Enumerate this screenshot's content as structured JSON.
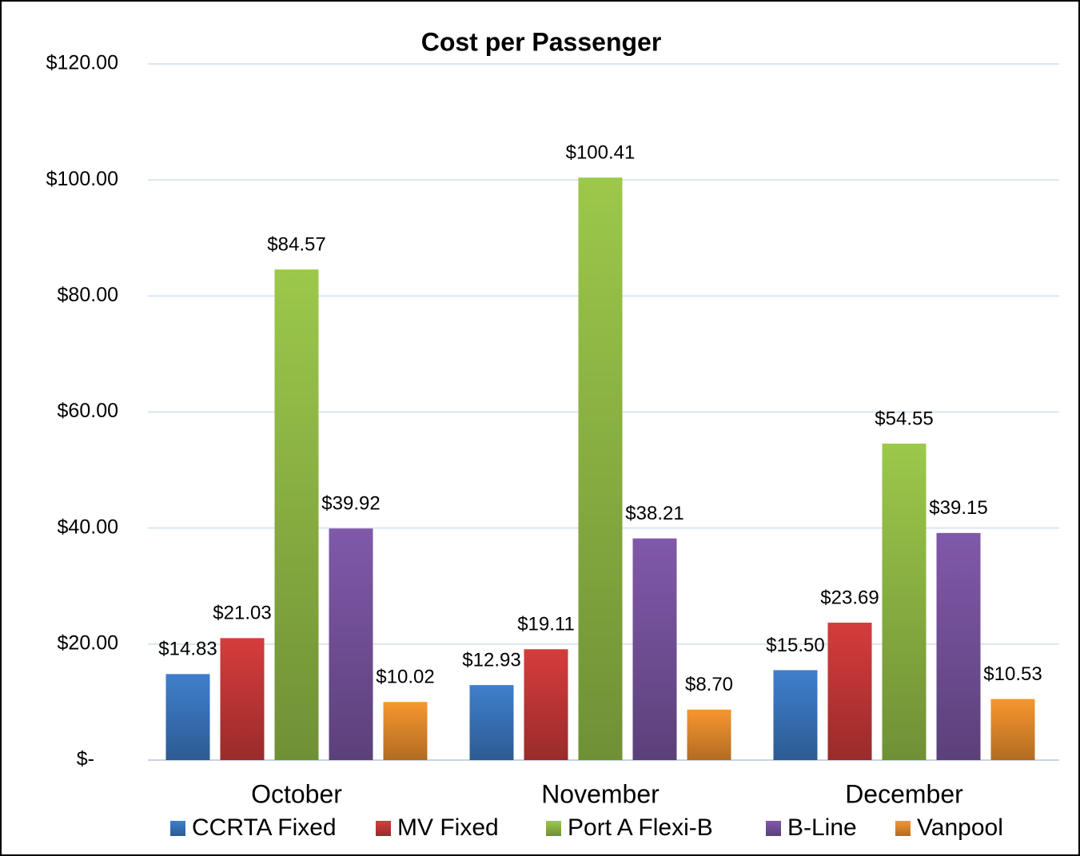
{
  "chart_data": {
    "type": "bar",
    "title": "Cost per Passenger",
    "categories": [
      "October",
      "November",
      "December"
    ],
    "series": [
      {
        "name": "CCRTA Fixed",
        "color": "#3f7fcc",
        "values": [
          14.83,
          12.93,
          15.5
        ],
        "value_labels": [
          "$14.83",
          "$12.93",
          "$15.50"
        ]
      },
      {
        "name": "MV Fixed",
        "color": "#d63c3c",
        "values": [
          21.03,
          19.11,
          23.69
        ],
        "value_labels": [
          "$21.03",
          "$19.11",
          "$23.69"
        ]
      },
      {
        "name": "Port A Flexi-B",
        "color": "#9cc84b",
        "values": [
          84.57,
          100.41,
          54.55
        ],
        "value_labels": [
          "$84.57",
          "$100.41",
          "$54.55"
        ]
      },
      {
        "name": "B-Line",
        "color": "#8059aa",
        "values": [
          39.92,
          38.21,
          39.15
        ],
        "value_labels": [
          "$39.92",
          "$38.21",
          "$39.15"
        ]
      },
      {
        "name": "Vanpool",
        "color": "#f7962f",
        "values": [
          10.02,
          8.7,
          10.53
        ],
        "value_labels": [
          "$10.02",
          "$8.70",
          "$10.53"
        ]
      }
    ],
    "ylim": [
      0,
      120
    ],
    "yticks": [
      {
        "value": 0,
        "label": "$-"
      },
      {
        "value": 20,
        "label": "$20.00"
      },
      {
        "value": 40,
        "label": "$40.00"
      },
      {
        "value": 60,
        "label": "$60.00"
      },
      {
        "value": 80,
        "label": "$80.00"
      },
      {
        "value": 100,
        "label": "$100.00"
      },
      {
        "value": 120,
        "label": "$120.00"
      }
    ],
    "grid": true,
    "legend": "bottom"
  }
}
